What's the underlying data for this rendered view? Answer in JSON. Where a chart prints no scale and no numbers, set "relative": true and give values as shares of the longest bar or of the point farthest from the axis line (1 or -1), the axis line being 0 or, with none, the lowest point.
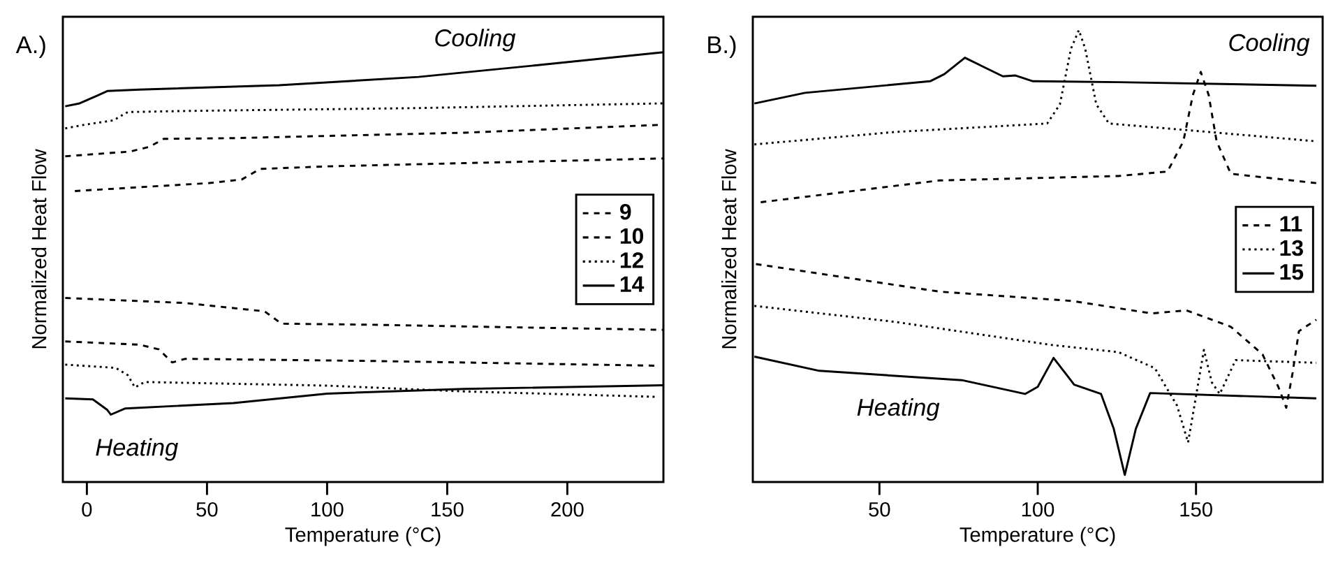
{
  "chart_data": [
    {
      "type": "line",
      "title": "A.)",
      "xlabel": "Temperature (°C)",
      "ylabel": "Normalized Heat Flow",
      "relative": true,
      "legend": "right",
      "xlim": [
        -10,
        240
      ],
      "xticks": [
        0,
        50,
        100,
        150,
        200
      ],
      "annotations": [
        "Cooling",
        "Heating"
      ],
      "series": [
        {
          "name": "9",
          "color": "#000000",
          "line_style": "dashed",
          "x": [
            -9,
            41,
            74,
            81,
            119,
            177,
            240,
            null,
            -5,
            51,
            64.5,
            72,
            99.5,
            157,
            240
          ],
          "values": [
            0.322,
            0.308,
            0.285,
            0.251,
            0.248,
            0.241,
            0.234,
            null,
            0.617,
            0.639,
            0.649,
            0.678,
            0.685,
            0.694,
            0.707
          ]
        },
        {
          "name": "10",
          "color": "#000000",
          "line_style": "dashed",
          "x": [
            -9,
            22,
            30,
            35.5,
            41,
            119,
            237,
            null,
            -9,
            18,
            26,
            32,
            61,
            157,
            240
          ],
          "values": [
            0.202,
            0.193,
            0.18,
            0.144,
            0.154,
            0.148,
            0.135,
            null,
            0.713,
            0.726,
            0.739,
            0.761,
            0.763,
            0.778,
            0.8
          ]
        },
        {
          "name": "12",
          "color": "#000000",
          "line_style": "dotted",
          "x": [
            -9,
            12,
            17,
            20,
            24,
            100,
            157,
            237,
            null,
            -9,
            -1,
            11,
            17,
            41,
            138,
            240
          ],
          "values": [
            0.138,
            0.129,
            0.109,
            0.075,
            0.09,
            0.08,
            0.064,
            0.049,
            null,
            0.79,
            0.8,
            0.812,
            0.835,
            0.838,
            0.846,
            0.859
          ]
        },
        {
          "name": "14",
          "color": "#000000",
          "line_style": "solid",
          "x": [
            -9,
            2.5,
            8.5,
            10,
            16,
            61,
            100,
            157,
            240,
            null,
            -9,
            -3,
            4.5,
            8.5,
            22,
            80,
            138,
            187,
            240
          ],
          "values": [
            0.045,
            0.042,
            0.013,
            0,
            0.017,
            0.032,
            0.058,
            0.071,
            0.081,
            null,
            0.851,
            0.859,
            0.881,
            0.893,
            0.897,
            0.909,
            0.932,
            0.964,
            1
          ]
        }
      ]
    },
    {
      "type": "line",
      "title": "B.)",
      "xlabel": "Temperature (°C)",
      "ylabel": "Normalized Heat Flow",
      "relative": true,
      "legend": "right",
      "xlim": [
        10,
        190
      ],
      "xticks": [
        50,
        100,
        150
      ],
      "annotations": [
        "Cooling",
        "Heating"
      ],
      "series": [
        {
          "name": "11",
          "color": "#000000",
          "line_style": "dashed",
          "x": [
            11,
            69,
            111,
            136,
            147,
            161,
            171,
            176,
            178.5,
            180.5,
            182.5,
            188,
            null,
            12.5,
            69,
            125.5,
            141,
            146,
            149,
            151.5,
            154,
            156.5,
            161,
            188
          ],
          "values": [
            0.474,
            0.412,
            0.391,
            0.363,
            0.37,
            0.333,
            0.271,
            0.198,
            0.151,
            0.229,
            0.323,
            0.349,
            null,
            0.613,
            0.662,
            0.672,
            0.682,
            0.75,
            0.854,
            0.906,
            0.854,
            0.75,
            0.677,
            0.656
          ]
        },
        {
          "name": "13",
          "color": "#000000",
          "line_style": "dotted",
          "x": [
            10.5,
            55,
            104.5,
            125.5,
            137,
            144,
            147.5,
            150.5,
            152.5,
            155,
            157.5,
            162.5,
            188,
            null,
            10.5,
            55,
            103,
            107,
            110.5,
            113,
            115,
            118.5,
            122.5,
            154,
            188
          ],
          "values": [
            0.38,
            0.344,
            0.292,
            0.276,
            0.24,
            0.156,
            0.073,
            0.198,
            0.281,
            0.208,
            0.182,
            0.258,
            0.252,
            null,
            0.743,
            0.771,
            0.79,
            0.833,
            0.958,
            1,
            0.958,
            0.833,
            0.79,
            0.771,
            0.75
          ]
        },
        {
          "name": "15",
          "color": "#000000",
          "line_style": "solid",
          "x": [
            10.5,
            31,
            76,
            96,
            100,
            105,
            111.5,
            120,
            124,
            127.5,
            131,
            135.5,
            188,
            null,
            10.5,
            26.5,
            66,
            70.5,
            77,
            83,
            89,
            93,
            98.5,
            125.5,
            188
          ],
          "values": [
            0.266,
            0.234,
            0.213,
            0.182,
            0.198,
            0.263,
            0.203,
            0.182,
            0.104,
            0,
            0.104,
            0.184,
            0.172,
            null,
            0.835,
            0.859,
            0.885,
            0.901,
            0.938,
            0.917,
            0.896,
            0.898,
            0.885,
            0.883,
            0.875
          ]
        }
      ]
    }
  ]
}
